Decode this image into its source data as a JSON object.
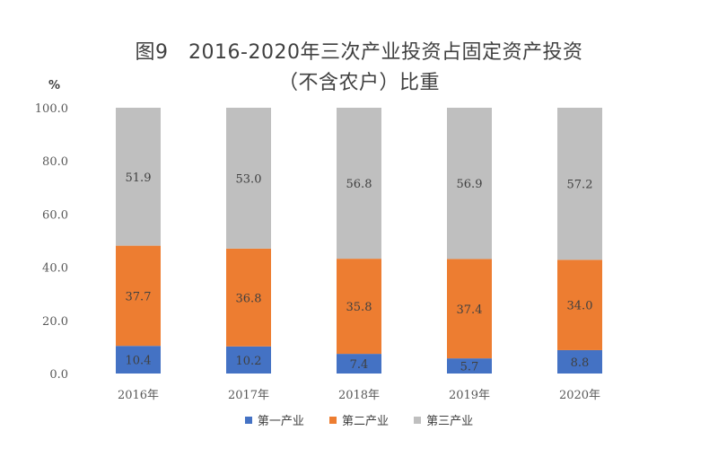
{
  "title_line1": "图9　2016-2020年三次产业投资占固定资产投资",
  "title_line2": "（不含农户）比重",
  "unit": "%",
  "colors": {
    "primary": "#4472C4",
    "secondary": "#ED7D31",
    "tertiary": "#BFBFBF",
    "axis_text": "#595959",
    "label_dark": "#404040"
  },
  "chart_data": {
    "type": "bar",
    "stacked": true,
    "categories": [
      "2016年",
      "2017年",
      "2018年",
      "2019年",
      "2020年"
    ],
    "series": [
      {
        "name": "第一产业",
        "values": [
          10.4,
          10.2,
          7.4,
          5.7,
          8.8
        ]
      },
      {
        "name": "第二产业",
        "values": [
          37.7,
          36.8,
          35.8,
          37.4,
          34.0
        ]
      },
      {
        "name": "第三产业",
        "values": [
          51.9,
          53.0,
          56.8,
          56.9,
          57.2
        ]
      }
    ],
    "ylim": [
      0,
      100
    ],
    "yticks": [
      "0.0",
      "20.0",
      "40.0",
      "60.0",
      "80.0",
      "100.0"
    ],
    "grid": false,
    "legend_position": "bottom"
  }
}
